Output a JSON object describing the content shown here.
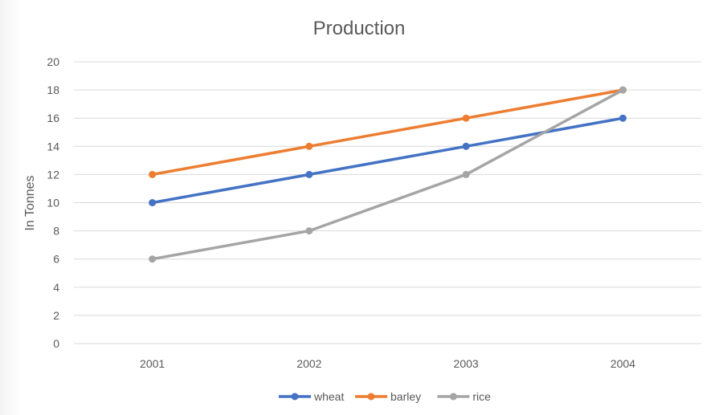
{
  "chart_data": {
    "type": "line",
    "title": "Production",
    "xlabel": "",
    "ylabel": "In Tonnes",
    "categories": [
      "2001",
      "2002",
      "2003",
      "2004"
    ],
    "ylim": [
      0,
      20
    ],
    "yticks": [
      0,
      2,
      4,
      6,
      8,
      10,
      12,
      14,
      16,
      18,
      20
    ],
    "grid": true,
    "legend_position": "bottom",
    "series": [
      {
        "name": "wheat",
        "color": "#4472C4",
        "values": [
          10,
          12,
          14,
          16
        ]
      },
      {
        "name": "barley",
        "color": "#ED7D31",
        "values": [
          12,
          14,
          16,
          18
        ]
      },
      {
        "name": "rice",
        "color": "#A5A5A5",
        "values": [
          6,
          8,
          12,
          18
        ]
      }
    ]
  }
}
